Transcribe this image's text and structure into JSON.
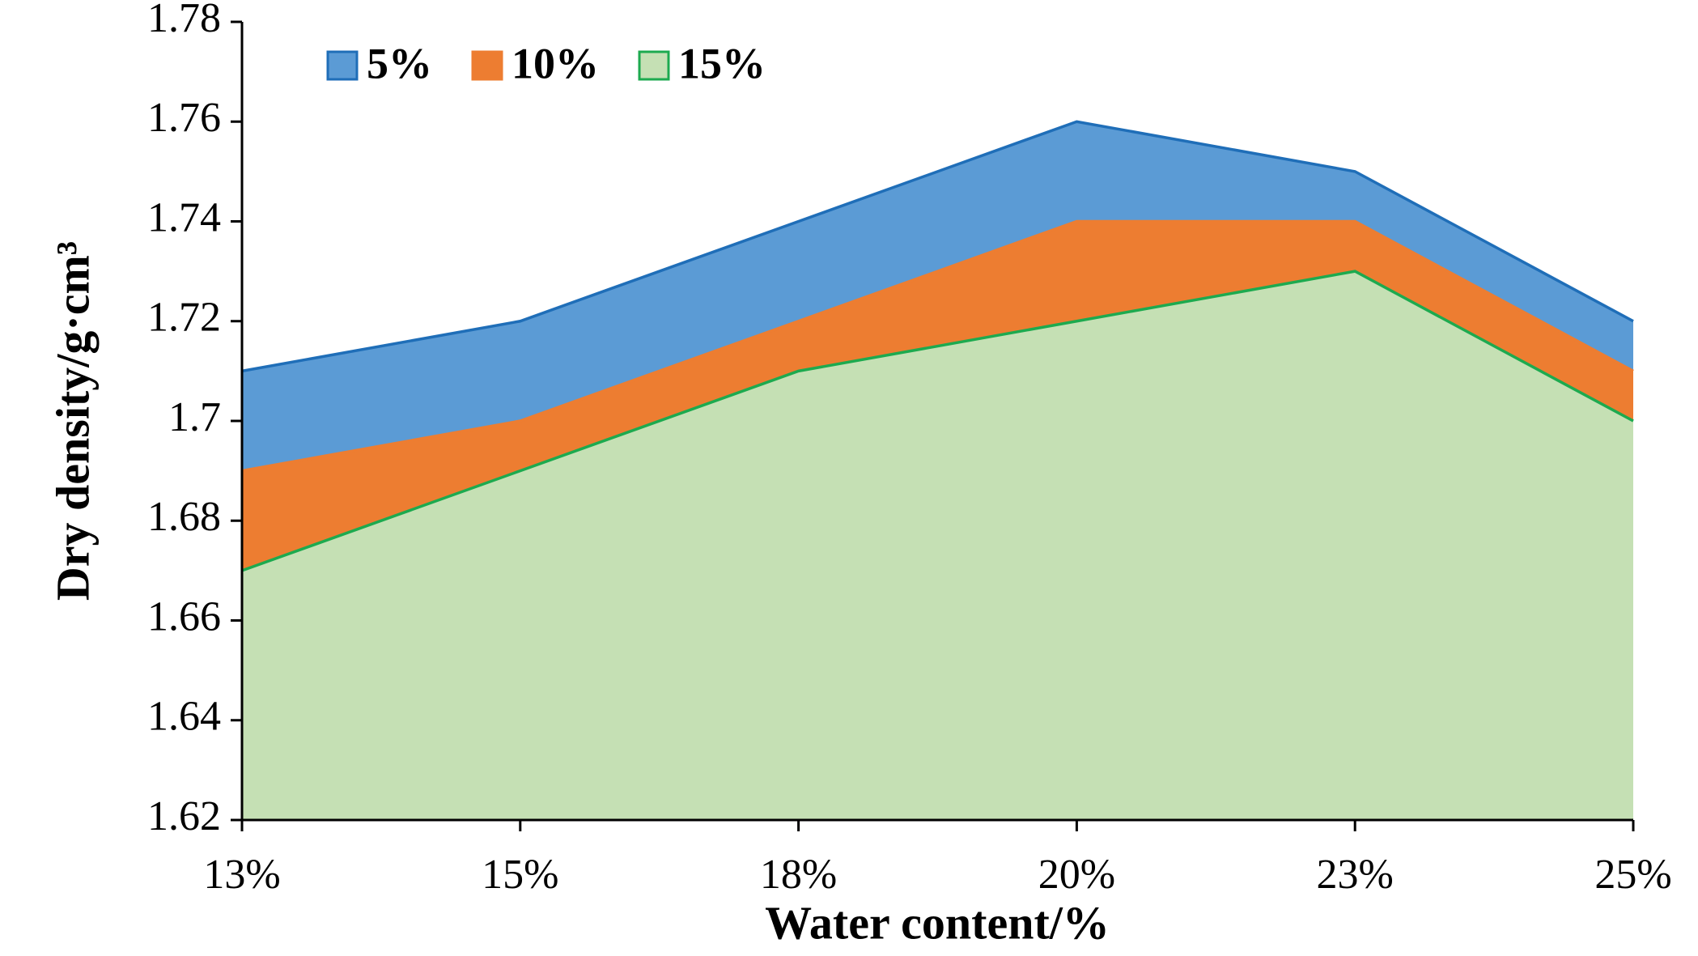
{
  "chart_data": {
    "type": "area",
    "x_label": "Water content/%",
    "y_label": "Dry density/g·cm³",
    "categories": [
      "13%",
      "15%",
      "18%",
      "20%",
      "23%",
      "25%"
    ],
    "series": [
      {
        "name": "5%",
        "color": "#5b9bd5",
        "line_color": "#1f6eb8",
        "values": [
          1.71,
          1.72,
          1.74,
          1.76,
          1.75,
          1.72
        ]
      },
      {
        "name": "10%",
        "color": "#ed7d31",
        "line_color": "#ed7d31",
        "values": [
          1.69,
          1.7,
          1.72,
          1.74,
          1.74,
          1.71
        ]
      },
      {
        "name": "15%",
        "color": "#c5e0b4",
        "line_color": "#1daa4f",
        "values": [
          1.67,
          1.69,
          1.71,
          1.72,
          1.73,
          1.7
        ]
      }
    ],
    "ylim": [
      1.62,
      1.78
    ],
    "yticks": [
      1.62,
      1.64,
      1.66,
      1.68,
      1.7,
      1.72,
      1.74,
      1.76,
      1.78
    ],
    "legend": "top-left"
  }
}
